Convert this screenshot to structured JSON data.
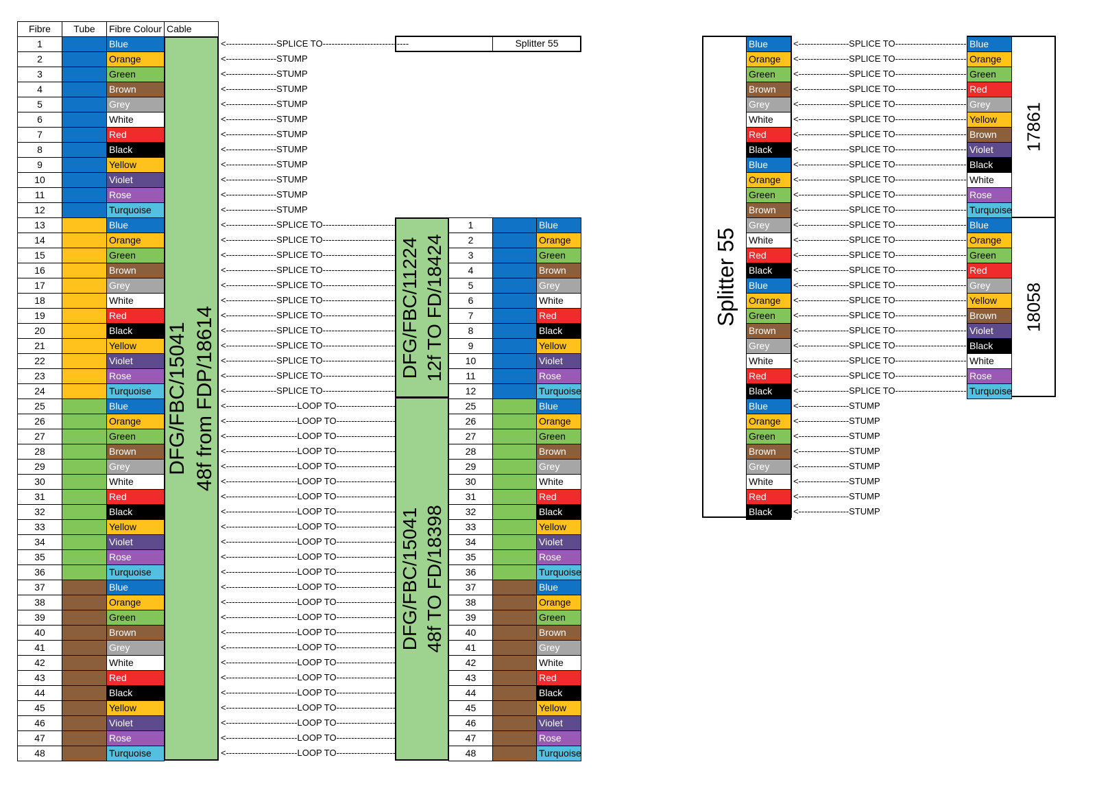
{
  "colors": {
    "Blue": "#1173c6",
    "Orange": "#ffc21c",
    "Green": "#82c65a",
    "Brown": "#8b5e3c",
    "Grey": "#a6a6a6",
    "White": "#ffffff",
    "Red": "#ef2b2b",
    "Black": "#000000",
    "Yellow": "#ffc21c",
    "Violet": "#5e4b8e",
    "Rose": "#9b59b6",
    "Turquoise": "#52c1e0",
    "cable_green": "#9dd38e"
  },
  "header": {
    "fibre": "Fibre",
    "tube": "Tube",
    "fibre_colour": "Fibre Colour",
    "cable": "Cable"
  },
  "colour_order": [
    "Blue",
    "Orange",
    "Green",
    "Brown",
    "Grey",
    "White",
    "Red",
    "Black",
    "Yellow",
    "Violet",
    "Rose",
    "Turquoise"
  ],
  "tube_order": [
    "Blue",
    "Yellow",
    "Green",
    "Brown"
  ],
  "left_cable": {
    "line1": "DFG/FBC/15041",
    "line2": "48f from FDP/18614"
  },
  "left_connections": [
    "<-----------------SPLICE TO-----------------------------",
    "<-----------------STUMP",
    "<-----------------STUMP",
    "<-----------------STUMP",
    "<-----------------STUMP",
    "<-----------------STUMP",
    "<-----------------STUMP",
    "<-----------------STUMP",
    "<-----------------STUMP",
    "<-----------------STUMP",
    "<-----------------STUMP",
    "<-----------------STUMP",
    "<-----------------SPLICE TO-----------------------------",
    "<-----------------SPLICE TO-----------------------------",
    "<-----------------SPLICE TO-----------------------------",
    "<-----------------SPLICE TO-----------------------------",
    "<-----------------SPLICE TO-----------------------------",
    "<-----------------SPLICE TO-----------------------------",
    "<-----------------SPLICE TO-----------------------------",
    "<-----------------SPLICE TO-----------------------------",
    "<-----------------SPLICE TO-----------------------------",
    "<-----------------SPLICE TO-----------------------------",
    "<-----------------SPLICE TO-----------------------------",
    "<-----------------SPLICE TO-----------------------------",
    "<------------------------LOOP TO---------------------------",
    "<------------------------LOOP TO---------------------------",
    "<------------------------LOOP TO---------------------------",
    "<------------------------LOOP TO---------------------------",
    "<------------------------LOOP TO---------------------------",
    "<------------------------LOOP TO---------------------------",
    "<------------------------LOOP TO---------------------------",
    "<------------------------LOOP TO---------------------------",
    "<------------------------LOOP TO---------------------------",
    "<------------------------LOOP TO---------------------------",
    "<------------------------LOOP TO---------------------------",
    "<------------------------LOOP TO---------------------------",
    "<------------------------LOOP TO---------------------------",
    "<------------------------LOOP TO---------------------------",
    "<------------------------LOOP TO---------------------------",
    "<------------------------LOOP TO---------------------------",
    "<------------------------LOOP TO---------------------------",
    "<------------------------LOOP TO---------------------------",
    "<------------------------LOOP TO---------------------------",
    "<------------------------LOOP TO---------------------------",
    "<------------------------LOOP TO---------------------------",
    "<------------------------LOOP TO---------------------------",
    "<------------------------LOOP TO---------------------------",
    "<------------------------LOOP TO---------------------------"
  ],
  "splitter_box": {
    "label": "Splitter 55"
  },
  "cable_12f": {
    "line1": "DFG/FBC/11224",
    "line2": "12f TO FD/18424"
  },
  "cable_48f": {
    "line1": "DFG/FBC/15041",
    "line2": "48f TO FD/18398"
  },
  "right_fibres_12f": [
    1,
    2,
    3,
    4,
    5,
    6,
    7,
    8,
    9,
    10,
    11,
    12
  ],
  "right_fibres_48f": [
    25,
    26,
    27,
    28,
    29,
    30,
    31,
    32,
    33,
    34,
    35,
    36,
    37,
    38,
    39,
    40,
    41,
    42,
    43,
    44,
    45,
    46,
    47,
    48
  ],
  "right_tubes_48f": [
    "Green",
    "Brown"
  ],
  "splitter": {
    "label": "Splitter 55",
    "port_colours": [
      "Blue",
      "Orange",
      "Green",
      "Brown",
      "Grey",
      "White",
      "Red",
      "Black",
      "Blue",
      "Orange",
      "Green",
      "Brown",
      "Grey",
      "White",
      "Red",
      "Black",
      "Blue",
      "Orange",
      "Green",
      "Brown",
      "Grey",
      "White",
      "Red",
      "Black",
      "Blue",
      "Orange",
      "Green",
      "Brown",
      "Grey",
      "White",
      "Red",
      "Black"
    ],
    "connections": [
      "<-----------------SPLICE TO-----------------------------",
      "<-----------------SPLICE TO-----------------------------",
      "<-----------------SPLICE TO-----------------------------",
      "<-----------------SPLICE TO-----------------------------",
      "<-----------------SPLICE TO-----------------------------",
      "<-----------------SPLICE TO-----------------------------",
      "<-----------------SPLICE TO-----------------------------",
      "<-----------------SPLICE TO-----------------------------",
      "<-----------------SPLICE TO-----------------------------",
      "<-----------------SPLICE TO-----------------------------",
      "<-----------------SPLICE TO-----------------------------",
      "<-----------------SPLICE TO-----------------------------",
      "<-----------------SPLICE TO-----------------------------",
      "<-----------------SPLICE TO-----------------------------",
      "<-----------------SPLICE TO-----------------------------",
      "<-----------------SPLICE TO-----------------------------",
      "<-----------------SPLICE TO-----------------------------",
      "<-----------------SPLICE TO-----------------------------",
      "<-----------------SPLICE TO-----------------------------",
      "<-----------------SPLICE TO-----------------------------",
      "<-----------------SPLICE TO-----------------------------",
      "<-----------------SPLICE TO-----------------------------",
      "<-----------------SPLICE TO-----------------------------",
      "<-----------------SPLICE TO-----------------------------",
      "<-----------------STUMP",
      "<-----------------STUMP",
      "<-----------------STUMP",
      "<-----------------STUMP",
      "<-----------------STUMP",
      "<-----------------STUMP",
      "<-----------------STUMP",
      "<-----------------STUMP"
    ],
    "target_colours": [
      "Blue",
      "Orange",
      "Green",
      "Red",
      "Grey",
      "Yellow",
      "Brown",
      "Violet",
      "Black",
      "White",
      "Rose",
      "Turquoise",
      "Blue",
      "Orange",
      "Green",
      "Red",
      "Grey",
      "Yellow",
      "Brown",
      "Violet",
      "Black",
      "White",
      "Rose",
      "Turquoise"
    ],
    "target_group_1": "17861",
    "target_group_2": "18058"
  }
}
